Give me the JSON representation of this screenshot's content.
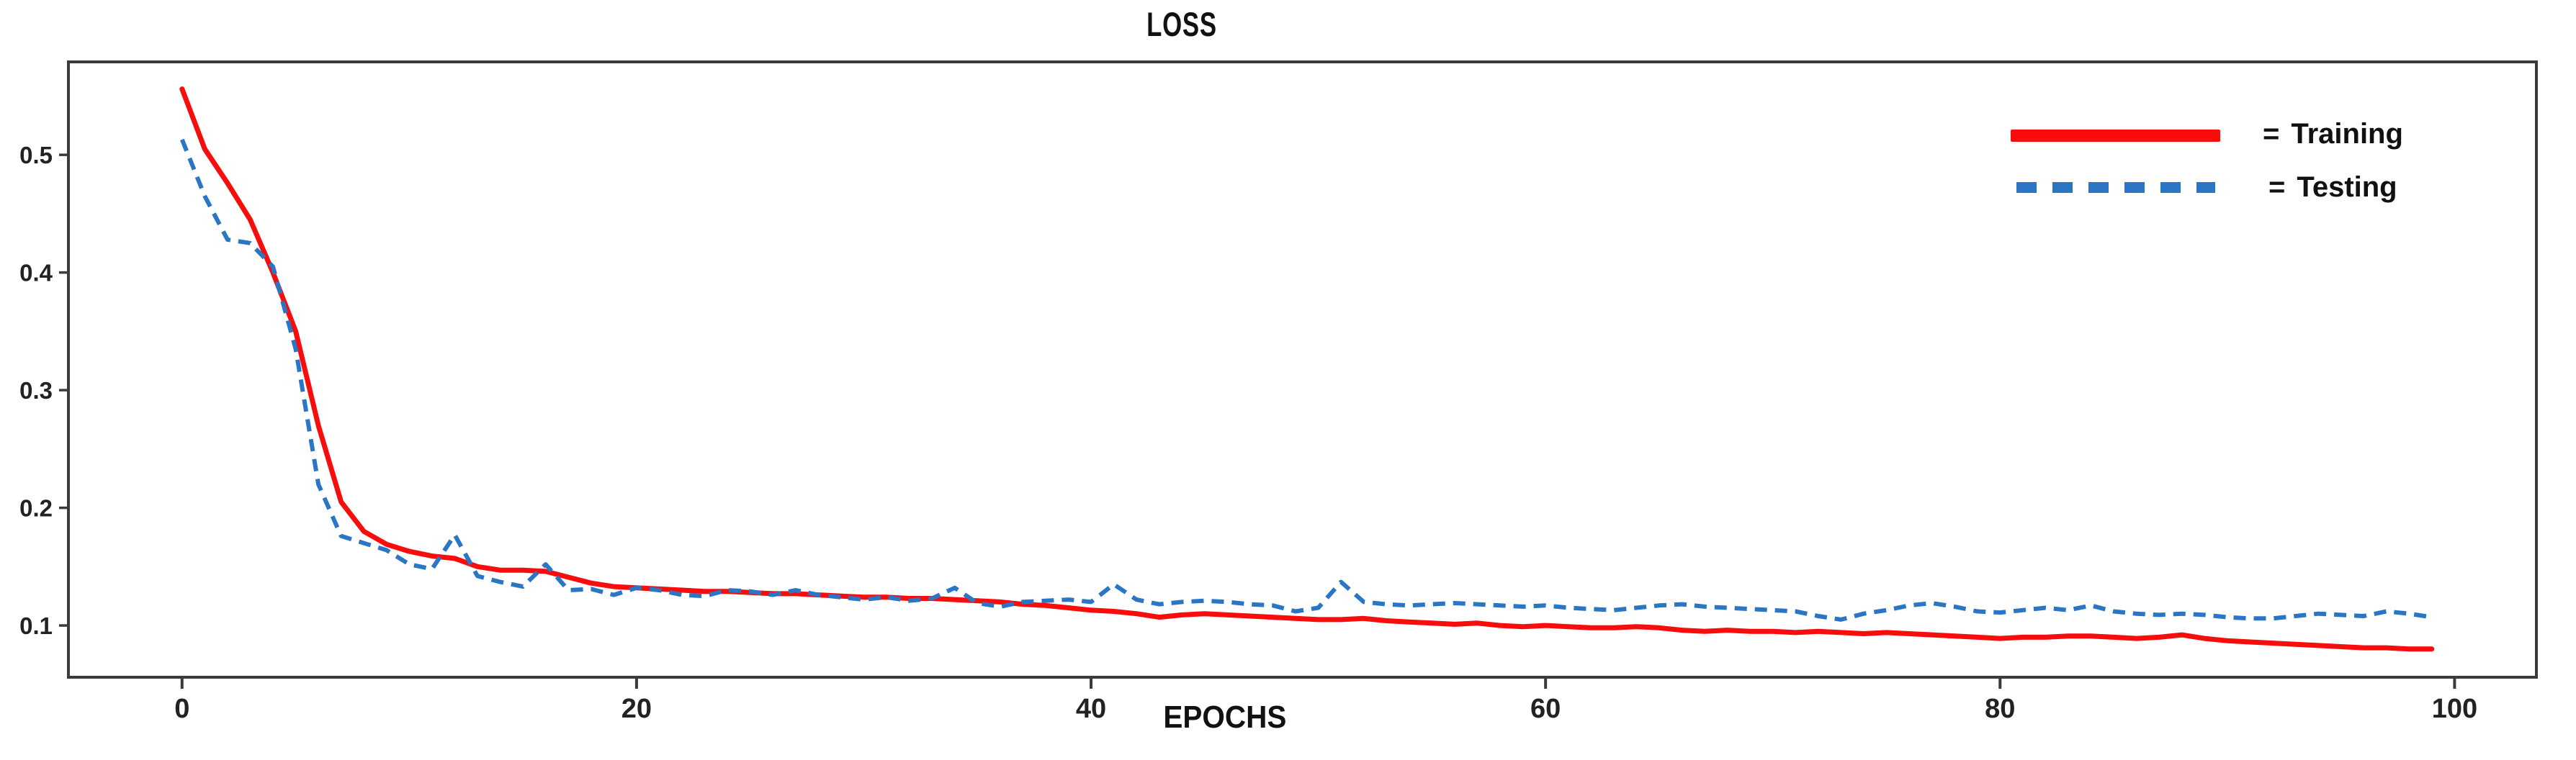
{
  "figure_title": "LOSS",
  "legend": {
    "items": [
      {
        "prefix": "=",
        "label": "Training",
        "color": "#F80D0D",
        "style": "solid"
      },
      {
        "prefix": "=",
        "label": "Testing",
        "color": "#2B76C4",
        "style": "dashed"
      }
    ]
  },
  "colors": {
    "frame": "#3B3B3B",
    "tick_text": "#222222",
    "title_text": "#111111",
    "training": "#F80D0D",
    "testing": "#2B76C4"
  },
  "chart_data": {
    "type": "line",
    "title": "LOSS",
    "xlabel": "EPOCHS",
    "ylabel": "",
    "grid": false,
    "legend_position": "upper right",
    "x_ticks": [
      0,
      20,
      40,
      60,
      80,
      100
    ],
    "y_ticks": [
      0.1,
      0.2,
      0.3,
      0.4,
      0.5
    ],
    "x_range": [
      -5.0,
      103.6
    ],
    "y_range": [
      0.056,
      0.579
    ],
    "series": [
      {
        "name": "Training",
        "color": "#F80D0D",
        "style": "solid",
        "stroke_width": 7,
        "x_start": 0,
        "x_step": 1,
        "values": [
          0.556,
          0.505,
          0.476,
          0.445,
          0.4,
          0.35,
          0.27,
          0.205,
          0.18,
          0.169,
          0.163,
          0.159,
          0.157,
          0.15,
          0.147,
          0.147,
          0.146,
          0.141,
          0.136,
          0.133,
          0.132,
          0.131,
          0.13,
          0.129,
          0.129,
          0.128,
          0.127,
          0.127,
          0.126,
          0.125,
          0.124,
          0.124,
          0.123,
          0.123,
          0.122,
          0.121,
          0.12,
          0.118,
          0.117,
          0.115,
          0.113,
          0.112,
          0.11,
          0.107,
          0.109,
          0.11,
          0.109,
          0.108,
          0.107,
          0.106,
          0.105,
          0.105,
          0.106,
          0.104,
          0.103,
          0.102,
          0.101,
          0.102,
          0.1,
          0.099,
          0.1,
          0.099,
          0.098,
          0.098,
          0.099,
          0.098,
          0.096,
          0.095,
          0.096,
          0.095,
          0.095,
          0.094,
          0.095,
          0.094,
          0.093,
          0.094,
          0.093,
          0.092,
          0.091,
          0.09,
          0.089,
          0.09,
          0.09,
          0.091,
          0.091,
          0.09,
          0.089,
          0.09,
          0.092,
          0.089,
          0.087,
          0.086,
          0.085,
          0.084,
          0.083,
          0.082,
          0.081,
          0.081,
          0.08,
          0.08
        ]
      },
      {
        "name": "Testing",
        "color": "#2B76C4",
        "style": "dashed",
        "stroke_width": 6,
        "x_start": 0,
        "x_step": 1,
        "values": [
          0.513,
          0.465,
          0.428,
          0.425,
          0.405,
          0.335,
          0.22,
          0.176,
          0.17,
          0.164,
          0.152,
          0.148,
          0.177,
          0.142,
          0.137,
          0.133,
          0.152,
          0.13,
          0.131,
          0.126,
          0.132,
          0.13,
          0.126,
          0.125,
          0.13,
          0.129,
          0.126,
          0.13,
          0.126,
          0.124,
          0.122,
          0.124,
          0.121,
          0.123,
          0.132,
          0.119,
          0.116,
          0.12,
          0.121,
          0.122,
          0.12,
          0.135,
          0.122,
          0.118,
          0.12,
          0.121,
          0.12,
          0.118,
          0.117,
          0.112,
          0.115,
          0.137,
          0.12,
          0.118,
          0.117,
          0.118,
          0.119,
          0.118,
          0.117,
          0.116,
          0.117,
          0.115,
          0.114,
          0.113,
          0.115,
          0.117,
          0.118,
          0.116,
          0.115,
          0.114,
          0.113,
          0.112,
          0.108,
          0.105,
          0.11,
          0.113,
          0.117,
          0.119,
          0.116,
          0.112,
          0.111,
          0.113,
          0.115,
          0.113,
          0.117,
          0.112,
          0.11,
          0.109,
          0.11,
          0.109,
          0.107,
          0.106,
          0.106,
          0.108,
          0.11,
          0.109,
          0.108,
          0.112,
          0.11,
          0.107
        ]
      }
    ]
  }
}
